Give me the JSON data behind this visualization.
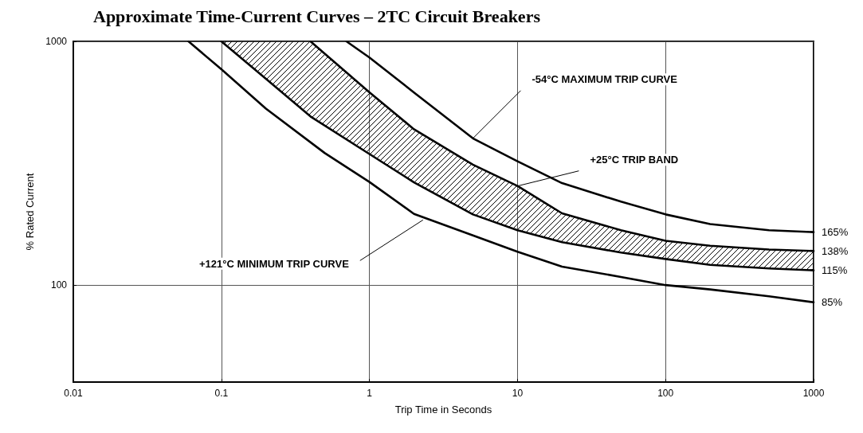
{
  "chart_data": {
    "type": "line",
    "title": "Approximate Time-Current Curves – 2TC Circuit Breakers",
    "xlabel": "Trip Time in Seconds",
    "ylabel": "% Rated Current",
    "log": "xy",
    "xlim": [
      0.01,
      1000
    ],
    "xticks": [
      0.01,
      0.1,
      1,
      10,
      100,
      1000
    ],
    "ylim": [
      40,
      1000
    ],
    "yticks": [
      100,
      1000
    ],
    "grid": true,
    "marker": "none",
    "line_style": "solid",
    "series": [
      {
        "color": "#000000",
        "x": [
          0.06,
          0.1,
          0.2,
          0.5,
          1,
          2,
          5,
          10,
          20,
          50,
          100,
          200,
          500,
          1000
        ],
        "values": [
          1000,
          768,
          530,
          348,
          265,
          196,
          160,
          137,
          119,
          108,
          100,
          96,
          90,
          85
        ]
      },
      {
        "color": "#000000",
        "x": [
          0.1,
          0.2,
          0.4,
          1,
          2,
          5,
          10,
          20,
          50,
          100,
          200,
          500,
          1000
        ],
        "values": [
          1000,
          702,
          492,
          345,
          264,
          195,
          168,
          150,
          136,
          128,
          121,
          117,
          115
        ]
      },
      {
        "color": "#000000",
        "x": [
          0.1,
          0.2,
          0.4,
          1,
          2,
          5,
          10,
          20,
          50,
          100,
          200,
          500,
          1000
        ],
        "values": [
          null,
          null,
          1000,
          618,
          436,
          312,
          255,
          197,
          168,
          152,
          145,
          140,
          138
        ],
        "lower": [
          1000,
          702,
          492,
          345,
          264,
          195,
          168,
          150,
          136,
          128,
          121,
          117,
          115
        ],
        "upper": [
          1000,
          1000,
          1000,
          618,
          436,
          312,
          255,
          197,
          168,
          152,
          145,
          140,
          138
        ]
      },
      {
        "color": "#000000",
        "x": [
          0.7,
          1,
          2,
          5,
          10,
          20,
          50,
          100,
          200,
          500,
          1000
        ],
        "values": [
          1000,
          859,
          617,
          400,
          322,
          262,
          220,
          195,
          178,
          168,
          165
        ]
      }
    ],
    "annotations": [
      {
        "text": "-54°C MAXIMUM TRIP CURVE",
        "x": 5,
        "y": 400
      },
      {
        "text": "+25°C TRIP BAND",
        "x": 10,
        "y": 255
      },
      {
        "text": "+121°C MINIMUM TRIP CURVE",
        "x": 2.3,
        "y": 185
      },
      {
        "text": "165%",
        "x": 1000,
        "y": 165
      },
      {
        "text": "138%",
        "x": 1000,
        "y": 138
      },
      {
        "text": "115%",
        "x": 1000,
        "y": 115
      },
      {
        "text": "85%",
        "x": 1000,
        "y": 85
      }
    ]
  }
}
